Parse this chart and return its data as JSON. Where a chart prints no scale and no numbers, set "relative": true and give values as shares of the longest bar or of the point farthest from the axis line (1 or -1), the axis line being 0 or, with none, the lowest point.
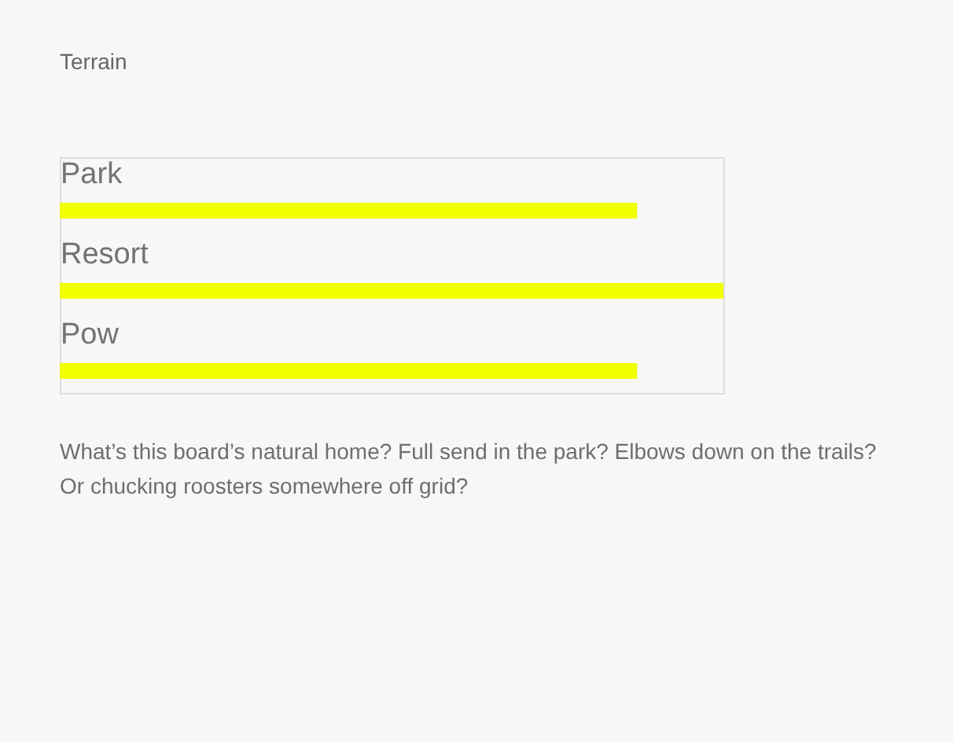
{
  "chart_data": {
    "type": "bar",
    "orientation": "horizontal",
    "relative": true,
    "title": "Terrain",
    "categories": [
      "Park",
      "Resort",
      "Pow"
    ],
    "values": [
      0.87,
      1,
      0.87
    ],
    "color": "#f2ff00",
    "annotations": [
      "What’s this board’s natural home? Full send in the park? Elbows down on the trails? Or chucking roosters somewhere off grid?"
    ]
  }
}
